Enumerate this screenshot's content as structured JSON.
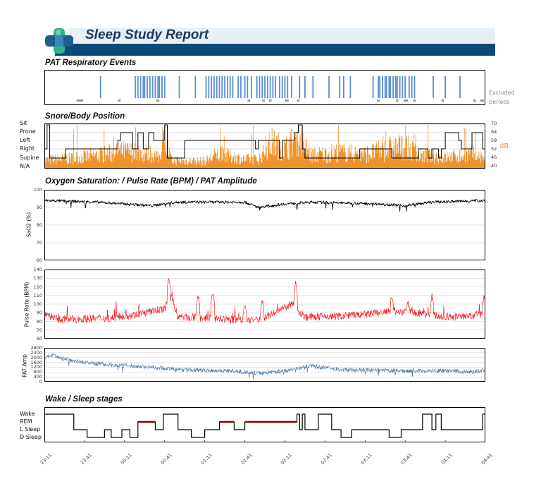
{
  "header": {
    "title": "Sleep Study Report",
    "colors": {
      "banner": "#0b4a77",
      "banner_light": "#e6eff6",
      "logo_dark": "#1f5f8e",
      "logo_mid": "#3b86c0",
      "logo_green": "#2fb38e"
    }
  },
  "colors": {
    "events": "#5a8ed0",
    "excluded": "#999999",
    "snore": "#f0922b",
    "spo2": "#000000",
    "pulse": "#ff0000",
    "pat": "#3a6aa3",
    "rem": "#8b0000",
    "position_line": "#000000"
  },
  "excluded_label": [
    "Excluded",
    "periods"
  ],
  "chart_data": [
    {
      "id": "respiratory_events",
      "type": "bar",
      "title": "PAT  Respiratory Events",
      "x_range": [
        0,
        330
      ],
      "x_unit": "minutes from 23:11",
      "events": [
        42,
        68,
        70,
        72,
        74,
        75,
        77,
        79,
        81,
        83,
        85,
        86,
        88,
        90,
        101,
        113,
        121,
        123,
        125,
        127,
        129,
        131,
        133,
        135,
        137,
        139,
        141,
        145,
        147,
        150,
        152,
        155,
        159,
        161,
        163,
        165,
        167,
        169,
        171,
        173,
        176,
        178,
        180,
        182,
        185,
        191,
        195,
        201,
        213,
        221,
        224,
        229,
        246,
        250,
        251,
        253,
        255,
        256,
        258,
        259,
        261,
        263,
        264,
        266,
        268,
        270,
        273,
        275,
        277,
        291,
        300,
        311
      ],
      "excluded": [
        [
          24,
          29
        ],
        [
          55,
          57
        ],
        [
          84,
          86
        ],
        [
          152,
          154
        ],
        [
          163,
          165
        ],
        [
          168,
          170
        ],
        [
          180,
          183
        ],
        [
          189,
          191
        ],
        [
          249,
          251
        ],
        [
          263,
          265
        ],
        [
          269,
          272
        ],
        [
          276,
          278
        ],
        [
          297,
          299
        ],
        [
          321,
          323
        ],
        [
          326,
          329
        ]
      ]
    },
    {
      "id": "snore_position",
      "type": "area",
      "title": "Snore/Body Position",
      "position_labels": [
        "Sit",
        "Prone",
        "Left",
        "Right",
        "Supine",
        "N/A"
      ],
      "db_ticks": [
        70,
        64,
        58,
        52,
        46,
        40
      ],
      "db_label": "dB",
      "db_range": [
        40,
        70
      ],
      "position_steps": [
        [
          0,
          "Right"
        ],
        [
          2,
          "Sit"
        ],
        [
          4,
          "Supine"
        ],
        [
          16,
          "Right"
        ],
        [
          55,
          "Left"
        ],
        [
          57,
          "Prone"
        ],
        [
          66,
          "Right"
        ],
        [
          70,
          "Prone"
        ],
        [
          74,
          "Right"
        ],
        [
          78,
          "Prone"
        ],
        [
          82,
          "Left"
        ],
        [
          90,
          "Sit"
        ],
        [
          92,
          "Supine"
        ],
        [
          105,
          "Left"
        ],
        [
          158,
          "Right"
        ],
        [
          160,
          "Left"
        ],
        [
          176,
          "Supine"
        ],
        [
          178,
          "Left"
        ],
        [
          187,
          "Prone"
        ],
        [
          190,
          "Sit"
        ],
        [
          193,
          "Right"
        ],
        [
          195,
          "Supine"
        ],
        [
          236,
          "Right"
        ],
        [
          260,
          "Supine"
        ],
        [
          280,
          "Right"
        ],
        [
          287,
          "Supine"
        ],
        [
          290,
          "Right"
        ],
        [
          295,
          "Supine"
        ],
        [
          297,
          "Right"
        ],
        [
          300,
          "Prone"
        ],
        [
          310,
          "Left"
        ],
        [
          312,
          "Right"
        ],
        [
          320,
          "Prone"
        ],
        [
          328,
          "Right"
        ]
      ],
      "snore_envelope": [
        [
          0,
          48
        ],
        [
          20,
          50
        ],
        [
          40,
          53
        ],
        [
          50,
          55
        ],
        [
          60,
          57
        ],
        [
          80,
          55
        ],
        [
          85,
          50
        ],
        [
          90,
          70
        ],
        [
          95,
          48
        ],
        [
          120,
          47
        ],
        [
          130,
          54
        ],
        [
          140,
          52
        ],
        [
          150,
          49
        ],
        [
          160,
          49
        ],
        [
          170,
          65
        ],
        [
          180,
          60
        ],
        [
          190,
          70
        ],
        [
          200,
          53
        ],
        [
          220,
          56
        ],
        [
          240,
          54
        ],
        [
          260,
          60
        ],
        [
          270,
          62
        ],
        [
          280,
          53
        ],
        [
          300,
          51
        ],
        [
          320,
          54
        ],
        [
          330,
          50
        ]
      ]
    },
    {
      "id": "spo2",
      "type": "line",
      "title": "Oxygen Saturation: / Pulse Rate (BPM) / PAT Amplitude",
      "ylabel": "SaO2 (%)",
      "ylim": [
        60,
        100
      ],
      "yticks": [
        100,
        90,
        80,
        70,
        60
      ],
      "baseline": [
        [
          0,
          94
        ],
        [
          40,
          93
        ],
        [
          60,
          92
        ],
        [
          80,
          91
        ],
        [
          100,
          93
        ],
        [
          150,
          93
        ],
        [
          160,
          90
        ],
        [
          180,
          92
        ],
        [
          200,
          93
        ],
        [
          250,
          92
        ],
        [
          270,
          91
        ],
        [
          290,
          93
        ],
        [
          330,
          94
        ]
      ]
    },
    {
      "id": "pulse_rate",
      "type": "line",
      "ylabel": "Pulse Rate (BPM)",
      "ylim": [
        60,
        140
      ],
      "yticks": [
        140,
        130,
        120,
        110,
        100,
        90,
        80,
        70,
        60
      ],
      "baseline": [
        [
          0,
          90
        ],
        [
          10,
          82
        ],
        [
          30,
          83
        ],
        [
          50,
          84
        ],
        [
          70,
          88
        ],
        [
          90,
          95
        ],
        [
          95,
          110
        ],
        [
          100,
          85
        ],
        [
          120,
          84
        ],
        [
          140,
          82
        ],
        [
          160,
          82
        ],
        [
          170,
          88
        ],
        [
          185,
          100
        ],
        [
          195,
          85
        ],
        [
          220,
          86
        ],
        [
          240,
          88
        ],
        [
          260,
          92
        ],
        [
          280,
          90
        ],
        [
          300,
          85
        ],
        [
          320,
          86
        ],
        [
          330,
          90
        ]
      ],
      "spikes": [
        [
          93,
          133
        ],
        [
          115,
          113
        ],
        [
          126,
          117
        ],
        [
          150,
          103
        ],
        [
          163,
          108
        ],
        [
          188,
          128
        ],
        [
          260,
          113
        ],
        [
          272,
          107
        ],
        [
          290,
          113
        ],
        [
          329,
          111
        ]
      ]
    },
    {
      "id": "pat_amplitude",
      "type": "line",
      "ylabel": "PAT Amp",
      "ylim": [
        0,
        2800
      ],
      "yticks": [
        2800,
        2400,
        2000,
        1600,
        1200,
        800,
        400,
        0
      ],
      "baseline": [
        [
          0,
          1900
        ],
        [
          5,
          2200
        ],
        [
          10,
          2000
        ],
        [
          30,
          1600
        ],
        [
          50,
          1400
        ],
        [
          80,
          1200
        ],
        [
          100,
          1000
        ],
        [
          140,
          900
        ],
        [
          160,
          700
        ],
        [
          180,
          900
        ],
        [
          200,
          1300
        ],
        [
          220,
          1000
        ],
        [
          260,
          900
        ],
        [
          300,
          900
        ],
        [
          320,
          800
        ],
        [
          330,
          1000
        ]
      ]
    },
    {
      "id": "sleep_stages",
      "type": "line",
      "title": "Wake / Sleep stages",
      "stage_labels": [
        "Wake",
        "REM",
        "L Sleep",
        "D Sleep"
      ],
      "x_labels": [
        "23:11",
        "23:41",
        "00:11",
        "00:41",
        "01:11",
        "01:41",
        "02:11",
        "02:41",
        "03:11",
        "03:41",
        "04:11",
        "04:41"
      ],
      "steps": [
        [
          0,
          "Wake"
        ],
        [
          22,
          "L Sleep"
        ],
        [
          32,
          "D Sleep"
        ],
        [
          45,
          "L Sleep"
        ],
        [
          50,
          "D Sleep"
        ],
        [
          58,
          "L Sleep"
        ],
        [
          64,
          "D Sleep"
        ],
        [
          70,
          "REM"
        ],
        [
          83,
          "L Sleep"
        ],
        [
          89,
          "Wake"
        ],
        [
          100,
          "L Sleep"
        ],
        [
          110,
          "D Sleep"
        ],
        [
          120,
          "L Sleep"
        ],
        [
          131,
          "REM"
        ],
        [
          142,
          "L Sleep"
        ],
        [
          150,
          "REM"
        ],
        [
          189,
          "Wake"
        ],
        [
          191,
          "L Sleep"
        ],
        [
          193,
          "Wake"
        ],
        [
          195,
          "L Sleep"
        ],
        [
          205,
          "Wake"
        ],
        [
          215,
          "L Sleep"
        ],
        [
          222,
          "D Sleep"
        ],
        [
          230,
          "L Sleep"
        ],
        [
          258,
          "D Sleep"
        ],
        [
          267,
          "L Sleep"
        ],
        [
          283,
          "Wake"
        ],
        [
          290,
          "L Sleep"
        ],
        [
          293,
          "Wake"
        ],
        [
          297,
          "L Sleep"
        ],
        [
          328,
          "Wake"
        ]
      ],
      "rem_segments": [
        [
          70,
          83
        ],
        [
          131,
          142
        ],
        [
          150,
          189
        ]
      ]
    }
  ]
}
